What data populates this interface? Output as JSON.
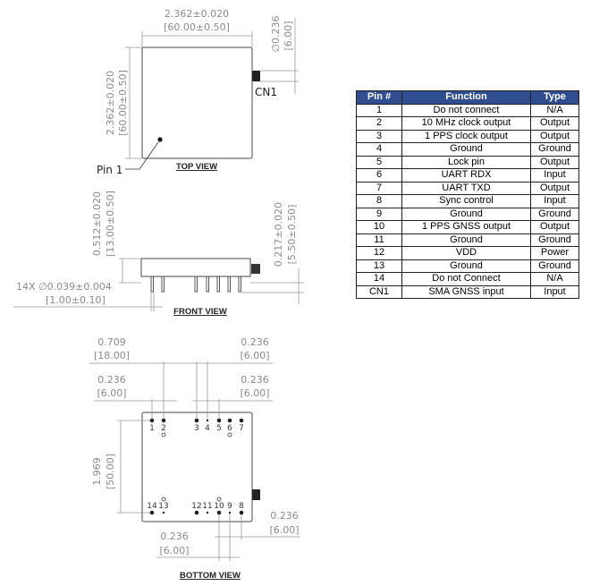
{
  "top_view": {
    "title": "TOP VIEW",
    "width_in": "2.362±0.020",
    "width_mm": "[60.00±0.50]",
    "height_in": "2.362±0.020",
    "height_mm": "[60.00±0.50]",
    "conn_in": "∅0.236",
    "conn_mm": "[6.00]",
    "conn_label": "CN1",
    "pin1_label": "Pin 1"
  },
  "front_view": {
    "title": "FRONT VIEW",
    "height_in": "0.512±0.020",
    "height_mm": "[13.00±0.50]",
    "pin_len_in": "0.217±0.020",
    "pin_len_mm": "[5.50±0.50]",
    "pin_dia_in": "14X ∅0.039±0.004",
    "pin_dia_mm": "[1.00±0.10]"
  },
  "bottom_view": {
    "title": "BOTTOM VIEW",
    "d1_in": "0.709",
    "d1_mm": "[18.00]",
    "d2_in": "0.236",
    "d2_mm": "[6.00]",
    "d3_in": "0.236",
    "d3_mm": "[6.00]",
    "d4_in": "0.236",
    "d4_mm": "[6.00]",
    "d5_in": "1.969",
    "d5_mm": "[50.00]",
    "d6_in": "0.236",
    "d6_mm": "[6.00]",
    "d7_in": "0.236",
    "d7_mm": "[6.00]",
    "top_pins": [
      "1",
      "2",
      "3",
      "4",
      "5",
      "6",
      "7"
    ],
    "bottom_pins": [
      "14",
      "13",
      "12",
      "11",
      "10",
      "9",
      "8"
    ]
  },
  "pin_table": {
    "headers": [
      "Pin #",
      "Function",
      "Type"
    ],
    "header_color": "#2f4d8f",
    "rows": [
      [
        "1",
        "Do not connect",
        "N/A"
      ],
      [
        "2",
        "10 MHz clock output",
        "Output"
      ],
      [
        "3",
        "1 PPS clock output",
        "Output"
      ],
      [
        "4",
        "Ground",
        "Ground"
      ],
      [
        "5",
        "Lock pin",
        "Output"
      ],
      [
        "6",
        "UART RDX",
        "Input"
      ],
      [
        "7",
        "UART TXD",
        "Output"
      ],
      [
        "8",
        "Sync control",
        "Input"
      ],
      [
        "9",
        "Ground",
        "Ground"
      ],
      [
        "10",
        "1 PPS GNSS output",
        "Output"
      ],
      [
        "11",
        "Ground",
        "Ground"
      ],
      [
        "12",
        "VDD",
        "Power"
      ],
      [
        "13",
        "Ground",
        "Ground"
      ],
      [
        "14",
        "Do not Connect",
        "N/A"
      ],
      [
        "CN1",
        "SMA GNSS input",
        "Input"
      ]
    ]
  }
}
